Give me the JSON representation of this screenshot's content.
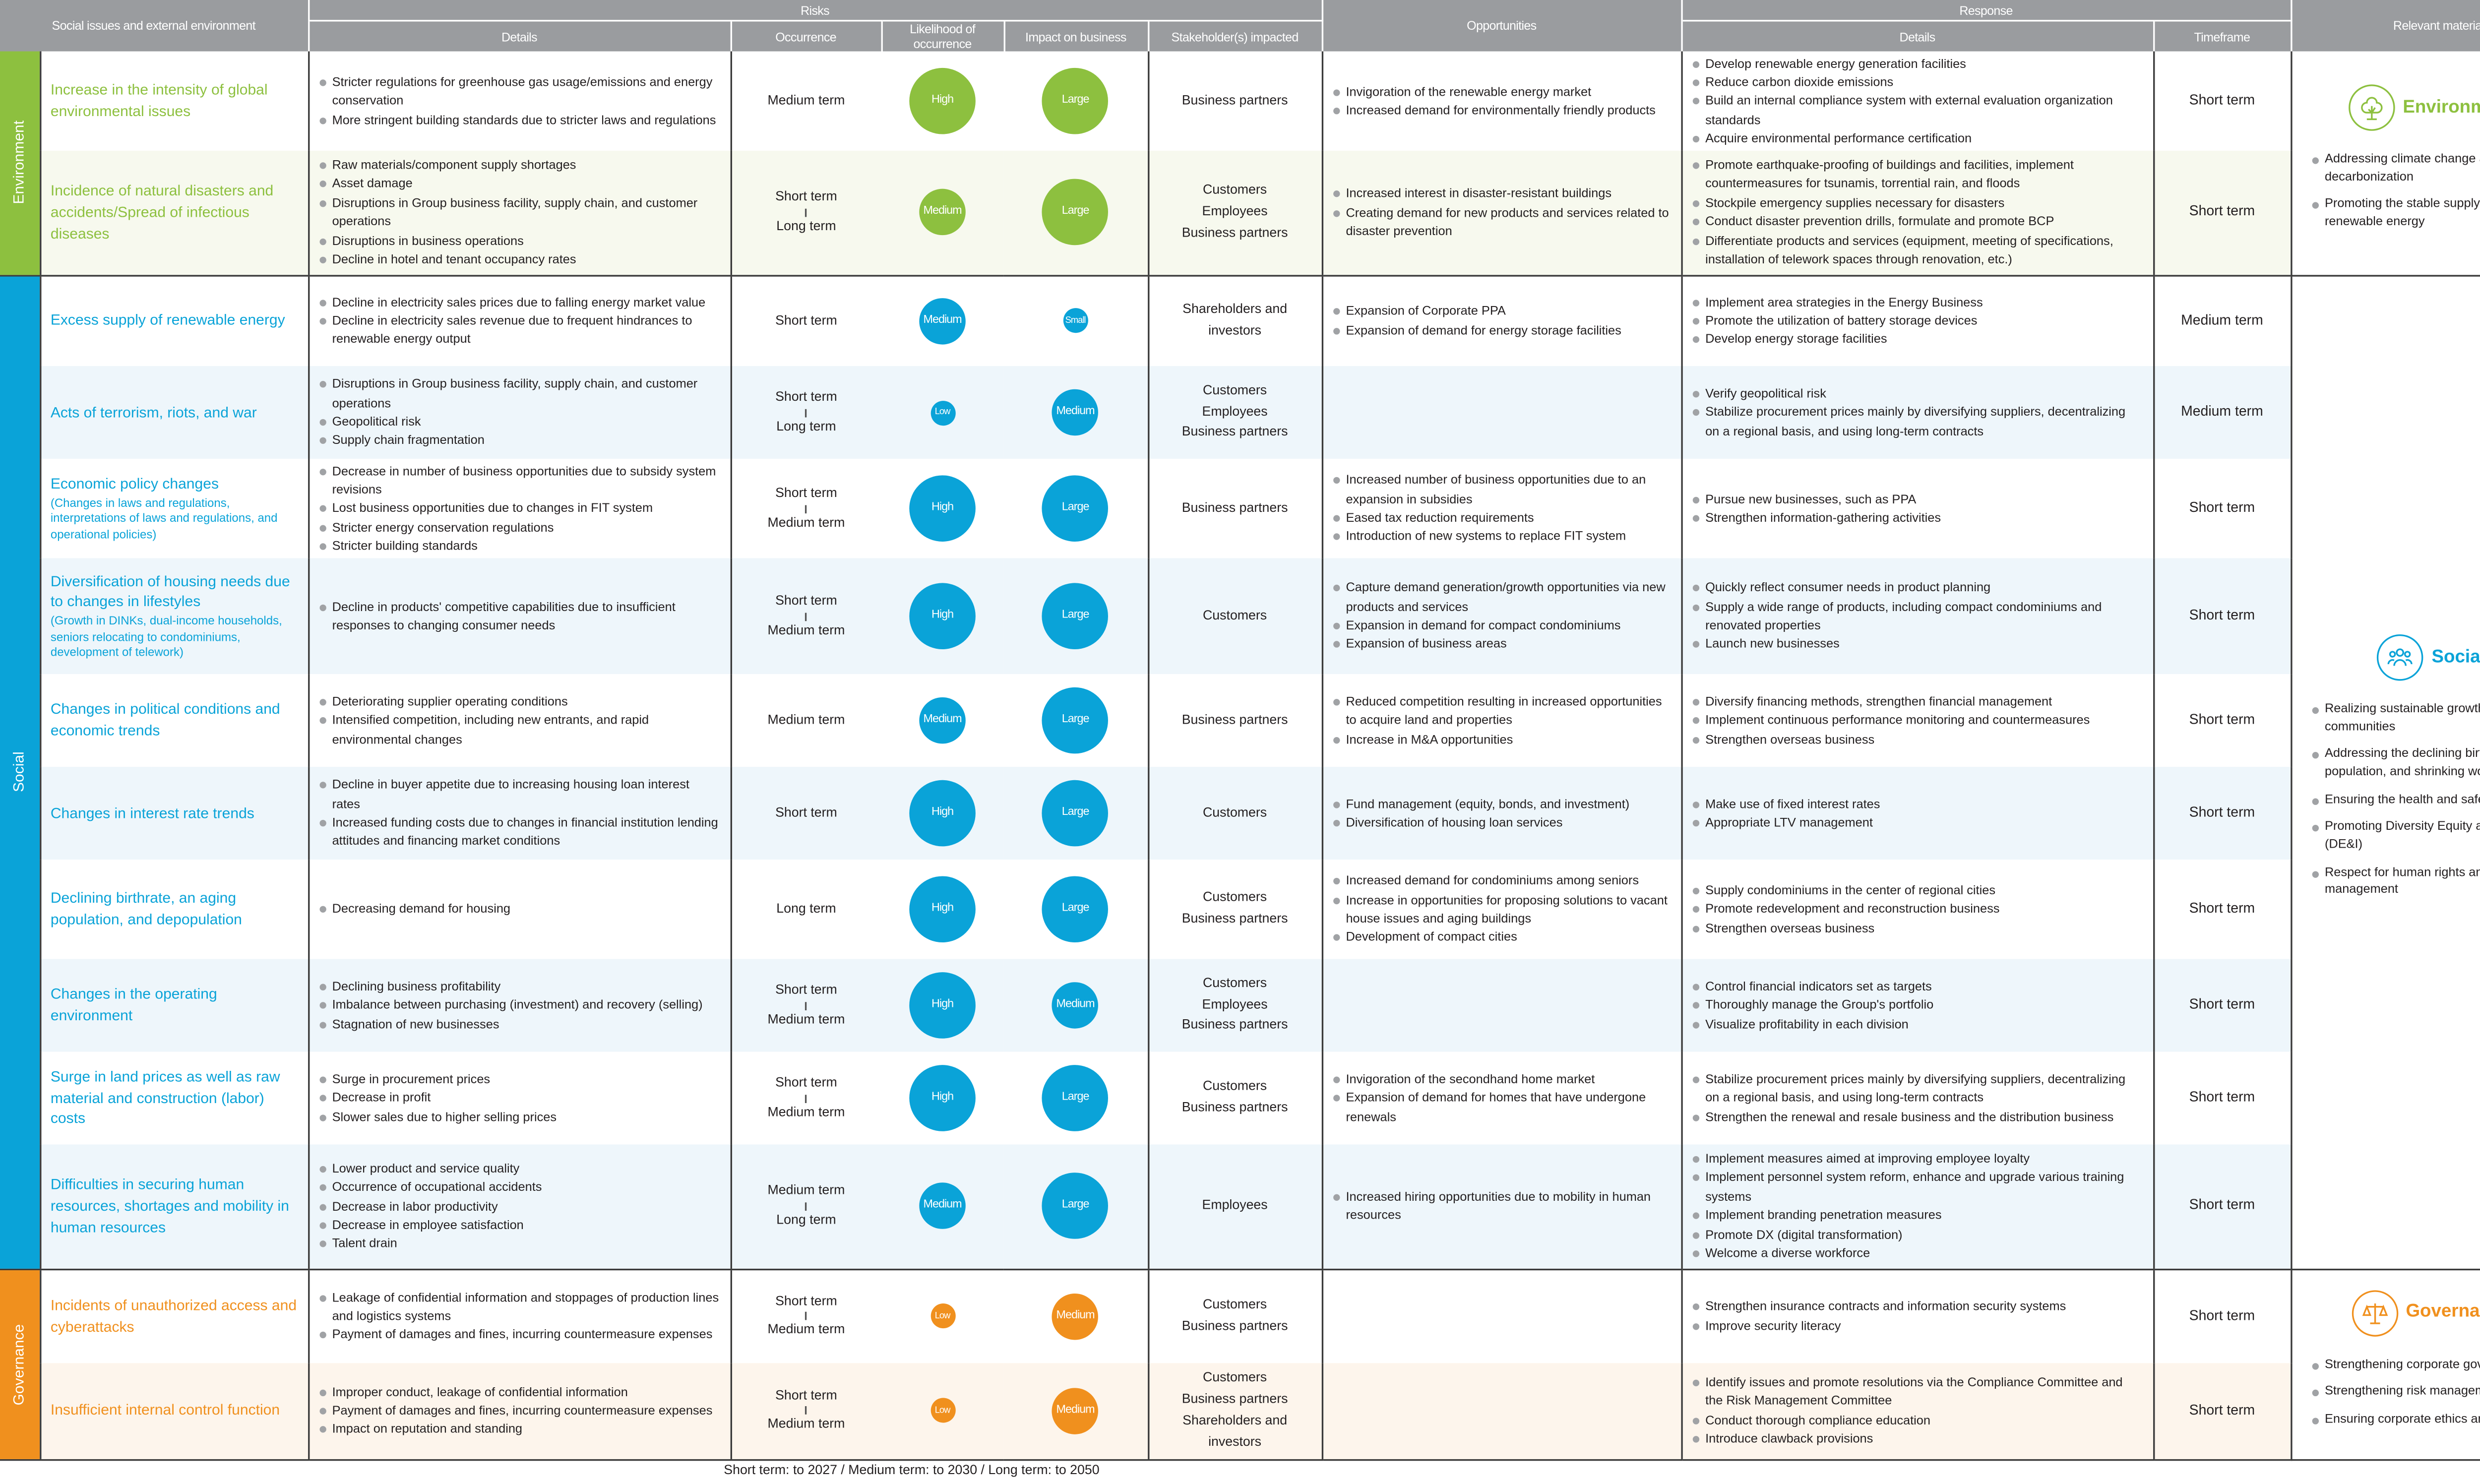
{
  "header": {
    "issues": "Social issues and external environment",
    "risks": "Risks",
    "risk_details": "Details",
    "occurrence": "Occurrence",
    "likelihood": "Likelihood of occurrence",
    "impact": "Impact on business",
    "stakeholders": "Stakeholder(s) impacted",
    "opportunities": "Opportunities",
    "response": "Response",
    "response_details": "Details",
    "timeframe": "Timeframe",
    "materiality": "Relevant materiality"
  },
  "colors": {
    "environment": "#8dc03f",
    "social": "#0aa3d8",
    "governance": "#f0901e",
    "header": "#9a9c9f"
  },
  "groups": [
    {
      "key": "environment",
      "label": "Environment",
      "materiality": {
        "icon": "tree-icon",
        "title": "Environment",
        "items": [
          "Addressing climate change and decarbonization",
          "Promoting the stable supply and use of renewable energy"
        ]
      },
      "rows": [
        {
          "issue": "Increase in the intensity of global environmental issues",
          "note": "",
          "details": [
            "Stricter regulations for greenhouse gas usage/emissions and energy conservation",
            "More stringent building standards due to stricter laws and regulations"
          ],
          "occurrence": [
            "Medium term"
          ],
          "likelihood": "High",
          "impact": "Large",
          "stakeholders": [
            "Business partners"
          ],
          "opportunities": [
            "Invigoration of the renewable energy market",
            "Increased demand for environmentally friendly products"
          ],
          "response": [
            "Develop renewable energy generation facilities",
            "Reduce carbon dioxide emissions",
            "Build an internal compliance system with external evaluation organization standards",
            "Acquire environmental performance certification"
          ],
          "timeframe": "Short term"
        },
        {
          "issue": "Incidence of natural disasters and accidents/Spread of infectious diseases",
          "note": "",
          "details": [
            "Raw materials/component supply shortages",
            "Asset damage",
            "Disruptions in Group business facility, supply chain, and customer operations",
            "Disruptions in business operations",
            "Decline in hotel and tenant occupancy rates"
          ],
          "occurrence": [
            "Short term",
            "Long term"
          ],
          "likelihood": "Medium",
          "impact": "Large",
          "stakeholders": [
            "Customers",
            "Employees",
            "Business partners"
          ],
          "opportunities": [
            "Increased interest in disaster-resistant buildings",
            "Creating demand for new products and services related to disaster prevention"
          ],
          "response": [
            "Promote earthquake-proofing of buildings and facilities, implement countermeasures for tsunamis, torrential rain, and floods",
            "Stockpile emergency supplies necessary for disasters",
            "Conduct disaster prevention drills, formulate and promote BCP",
            "Differentiate products and services (equipment, meeting of specifications, installation of telework spaces through renovation, etc.)"
          ],
          "timeframe": "Short term"
        }
      ]
    },
    {
      "key": "social",
      "label": "Social",
      "materiality": {
        "icon": "people-icon",
        "title": "Social",
        "items": [
          "Realizing sustainable growth of local communities",
          "Addressing the declining birthrate, aging population, and shrinking workforce",
          "Ensuring the health and safety of employees",
          "Promoting Diversity Equity and Inclusion (DE&I)",
          "Respect for human rights and supply chain management"
        ]
      },
      "rows": [
        {
          "issue": "Excess supply of renewable energy",
          "note": "",
          "details": [
            "Decline in electricity sales prices due to falling energy market value",
            "Decline in electricity sales revenue due to frequent hindrances to renewable energy output"
          ],
          "occurrence": [
            "Short term"
          ],
          "likelihood": "Medium",
          "impact": "Small",
          "stakeholders": [
            "Shareholders and investors"
          ],
          "opportunities": [
            "Expansion of Corporate PPA",
            "Expansion of demand for energy storage facilities"
          ],
          "response": [
            "Implement area strategies in the Energy Business",
            "Promote the utilization of battery storage devices",
            "Develop energy storage facilities"
          ],
          "timeframe": "Medium term"
        },
        {
          "issue": "Acts of terrorism, riots, and war",
          "note": "",
          "details": [
            "Disruptions in Group business facility, supply chain, and customer operations",
            "Geopolitical risk",
            "Supply chain fragmentation"
          ],
          "occurrence": [
            "Short term",
            "Long term"
          ],
          "likelihood": "Low",
          "impact": "Medium",
          "stakeholders": [
            "Customers",
            "Employees",
            "Business partners"
          ],
          "opportunities": [],
          "response": [
            "Verify geopolitical risk",
            "Stabilize procurement prices mainly by diversifying suppliers, decentralizing on a regional basis, and using long-term contracts"
          ],
          "timeframe": "Medium term"
        },
        {
          "issue": "Economic policy changes",
          "note": "(Changes in laws and regulations, interpretations of laws and regulations, and operational policies)",
          "details": [
            "Decrease in number of business opportunities due to subsidy system revisions",
            "Lost business opportunities due to changes in FIT system",
            "Stricter energy conservation regulations",
            "Stricter building standards"
          ],
          "occurrence": [
            "Short term",
            "Medium term"
          ],
          "likelihood": "High",
          "impact": "Large",
          "stakeholders": [
            "Business partners"
          ],
          "opportunities": [
            "Increased number of business opportunities due to an expansion in subsidies",
            "Eased tax reduction requirements",
            "Introduction of new systems to replace FIT system"
          ],
          "response": [
            "Pursue new businesses, such as PPA",
            "Strengthen information-gathering activities"
          ],
          "timeframe": "Short term"
        },
        {
          "issue": "Diversification of housing needs due to changes in lifestyles",
          "note": "(Growth in DINKs, dual-income households, seniors relocating to condominiums, development of telework)",
          "details": [
            "Decline in products' competitive capabilities due to insufficient responses to changing consumer needs"
          ],
          "occurrence": [
            "Short term",
            "Medium term"
          ],
          "likelihood": "High",
          "impact": "Large",
          "stakeholders": [
            "Customers"
          ],
          "opportunities": [
            "Capture demand generation/growth opportunities via new products and services",
            "Expansion in demand for compact condominiums",
            "Expansion of business areas"
          ],
          "response": [
            "Quickly reflect consumer needs in product planning",
            "Supply a wide range of products, including compact condominiums and renovated properties",
            "Launch new businesses"
          ],
          "timeframe": "Short term"
        },
        {
          "issue": "Changes in political conditions and economic trends",
          "note": "",
          "details": [
            "Deteriorating supplier operating conditions",
            "Intensified competition, including new entrants, and rapid environmental changes"
          ],
          "occurrence": [
            "Medium term"
          ],
          "likelihood": "Medium",
          "impact": "Large",
          "stakeholders": [
            "Business partners"
          ],
          "opportunities": [
            "Reduced competition resulting in increased opportunities to acquire land and properties",
            "Increase in M&A opportunities"
          ],
          "response": [
            "Diversify financing methods, strengthen financial management",
            "Implement continuous performance monitoring and countermeasures",
            "Strengthen overseas business"
          ],
          "timeframe": "Short term"
        },
        {
          "issue": "Changes in interest rate trends",
          "note": "",
          "details": [
            "Decline in buyer appetite due to increasing housing loan interest rates",
            "Increased funding costs due to changes in financial institution lending attitudes and financing market conditions"
          ],
          "occurrence": [
            "Short term"
          ],
          "likelihood": "High",
          "impact": "Large",
          "stakeholders": [
            "Customers"
          ],
          "opportunities": [
            "Fund management (equity, bonds, and investment)",
            "Diversification of housing loan services"
          ],
          "response": [
            "Make use of fixed interest rates",
            "Appropriate LTV management"
          ],
          "timeframe": "Short term"
        },
        {
          "issue": "Declining birthrate, an aging population, and depopulation",
          "note": "",
          "details": [
            "Decreasing demand for housing"
          ],
          "occurrence": [
            "Long term"
          ],
          "likelihood": "High",
          "impact": "Large",
          "stakeholders": [
            "Customers",
            "Business partners"
          ],
          "opportunities": [
            "Increased demand for condominiums among seniors",
            "Increase in opportunities for proposing solutions to vacant house issues and aging buildings",
            "Development of compact cities"
          ],
          "response": [
            "Supply condominiums in the center of regional cities",
            "Promote redevelopment and reconstruction business",
            "Strengthen overseas business"
          ],
          "timeframe": "Short term"
        },
        {
          "issue": "Changes in the operating environment",
          "note": "",
          "details": [
            "Declining business profitability",
            "Imbalance between purchasing (investment) and recovery (selling)",
            "Stagnation  of new businesses"
          ],
          "occurrence": [
            "Short term",
            "Medium term"
          ],
          "likelihood": "High",
          "impact": "Medium",
          "stakeholders": [
            "Customers",
            "Employees",
            "Business partners"
          ],
          "opportunities": [],
          "response": [
            "Control financial indicators set as targets",
            "Thoroughly manage the Group's portfolio",
            "Visualize profitability in each division"
          ],
          "timeframe": "Short term"
        },
        {
          "issue": "Surge in land prices as well as raw material and construction (labor) costs",
          "note": "",
          "details": [
            "Surge in procurement prices",
            "Decrease in profit",
            "Slower sales due to higher selling prices"
          ],
          "occurrence": [
            "Short term",
            "Medium term"
          ],
          "likelihood": "High",
          "impact": "Large",
          "stakeholders": [
            "Customers",
            "Business partners"
          ],
          "opportunities": [
            "Invigoration of the secondhand home market",
            "Expansion of demand for homes that have undergone renewals"
          ],
          "response": [
            "Stabilize procurement prices mainly by diversifying suppliers, decentralizing on a regional basis, and using long-term contracts",
            "Strengthen the renewal and resale business and the distribution business"
          ],
          "timeframe": "Short term"
        },
        {
          "issue": "Difficulties in securing human resources, shortages and mobility in human resources",
          "note": "",
          "details": [
            "Lower product and service quality",
            "Occurrence of occupational accidents",
            "Decrease in labor productivity",
            "Decrease in employee satisfaction",
            "Talent drain"
          ],
          "occurrence": [
            "Medium term",
            "Long term"
          ],
          "likelihood": "Medium",
          "impact": "Large",
          "stakeholders": [
            "Employees"
          ],
          "opportunities": [
            "Increased hiring opportunities due to mobility in human resources"
          ],
          "response": [
            "Implement measures aimed at improving employee loyalty",
            "Implement personnel system reform, enhance and upgrade various training systems",
            "Implement branding penetration measures",
            "Promote DX (digital transformation)",
            "Welcome a diverse workforce"
          ],
          "timeframe": "Short term"
        }
      ]
    },
    {
      "key": "governance",
      "label": "Governance",
      "materiality": {
        "icon": "scales-icon",
        "title": "Governance",
        "items": [
          "Strengthening corporate governance",
          "Strengthening risk management",
          "Ensuring corporate ethics and compliance"
        ]
      },
      "rows": [
        {
          "issue": "Incidents of unauthorized access and cyberattacks",
          "note": "",
          "details": [
            "Leakage of confidential information and stoppages of production lines and logistics systems",
            "Payment of damages and fines, incurring countermeasure expenses"
          ],
          "occurrence": [
            "Short term",
            "Medium term"
          ],
          "likelihood": "Low",
          "impact": "Medium",
          "stakeholders": [
            "Customers",
            "Business partners"
          ],
          "opportunities": [],
          "response": [
            "Strengthen insurance contracts and information security systems",
            "Improve security literacy"
          ],
          "timeframe": "Short term"
        },
        {
          "issue": "Insufficient internal control function",
          "note": "",
          "details": [
            "Improper conduct, leakage of confidential information",
            "Payment of damages and fines, incurring countermeasure expenses",
            "Impact on reputation and standing"
          ],
          "occurrence": [
            "Short term",
            "Medium term"
          ],
          "likelihood": "Low",
          "impact": "Medium",
          "stakeholders": [
            "Customers",
            "Business partners",
            "Shareholders and investors"
          ],
          "opportunities": [],
          "response": [
            "Identify issues and promote resolutions via the Compliance Committee and the Risk Management Committee",
            "Conduct thorough compliance education",
            "Introduce clawback provisions"
          ],
          "timeframe": "Short term"
        }
      ]
    }
  ],
  "footer": "Short term: to 2027 / Medium term: to 2030 / Long term: to 2050"
}
